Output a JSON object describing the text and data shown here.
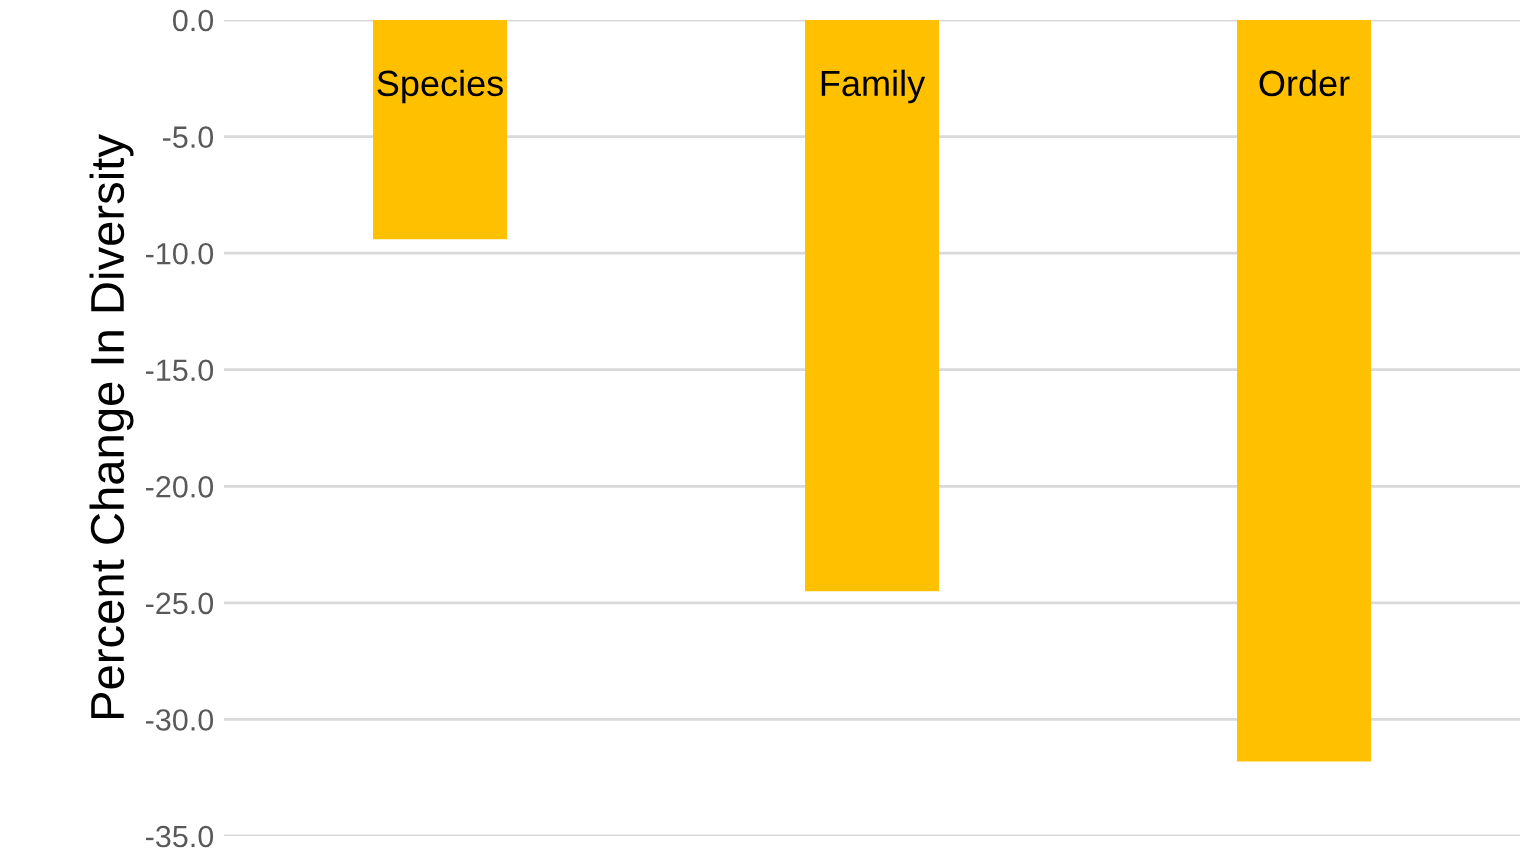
{
  "chart_data": {
    "type": "bar",
    "ylabel": "Percent Change In Diversity",
    "categories": [
      "Species",
      "Family",
      "Order"
    ],
    "values": [
      -9.4,
      -24.5,
      -31.8
    ],
    "color": "#ffc000",
    "ylim": [
      -35,
      0
    ],
    "yticks": [
      {
        "value": 0,
        "label": "0.0"
      },
      {
        "value": -5,
        "label": "-5.0"
      },
      {
        "value": -10,
        "label": "-10.0"
      },
      {
        "value": -15,
        "label": "-15.0"
      },
      {
        "value": -20,
        "label": "-20.0"
      },
      {
        "value": -25,
        "label": "-25.0"
      },
      {
        "value": -30,
        "label": "-30.0"
      },
      {
        "value": -35,
        "label": "-35.0"
      }
    ],
    "grid": "y"
  }
}
